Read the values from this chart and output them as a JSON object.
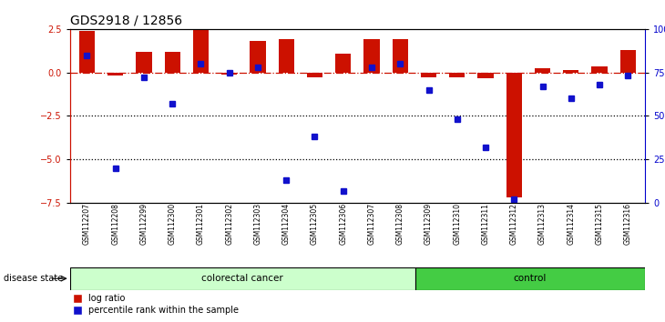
{
  "title": "GDS2918 / 12856",
  "samples": [
    "GSM112207",
    "GSM112208",
    "GSM112299",
    "GSM112300",
    "GSM112301",
    "GSM112302",
    "GSM112303",
    "GSM112304",
    "GSM112305",
    "GSM112306",
    "GSM112307",
    "GSM112308",
    "GSM112309",
    "GSM112310",
    "GSM112311",
    "GSM112312",
    "GSM112313",
    "GSM112314",
    "GSM112315",
    "GSM112316"
  ],
  "log_ratio": [
    2.4,
    -0.2,
    1.2,
    1.2,
    2.5,
    -0.1,
    1.8,
    1.9,
    -0.3,
    1.1,
    1.9,
    1.9,
    -0.3,
    -0.3,
    -0.35,
    -7.2,
    0.25,
    0.15,
    0.35,
    1.3
  ],
  "percentile": [
    85,
    20,
    72,
    57,
    80,
    75,
    78,
    13,
    38,
    7,
    78,
    80,
    65,
    48,
    32,
    2,
    67,
    60,
    68,
    73
  ],
  "colorectal_cancer_count": 12,
  "ylim": [
    -7.5,
    2.5
  ],
  "bar_color": "#cc1100",
  "dot_color": "#1111cc",
  "colorectal_color": "#ccffcc",
  "control_color": "#44cc44",
  "zero_line_color": "#cc1100",
  "dotted_line_color": "#000000",
  "right_axis_color": "#0000cc",
  "background_color": "#ffffff",
  "title_fontsize": 10,
  "tick_fontsize": 7,
  "label_fontsize": 8,
  "bar_width": 0.55
}
